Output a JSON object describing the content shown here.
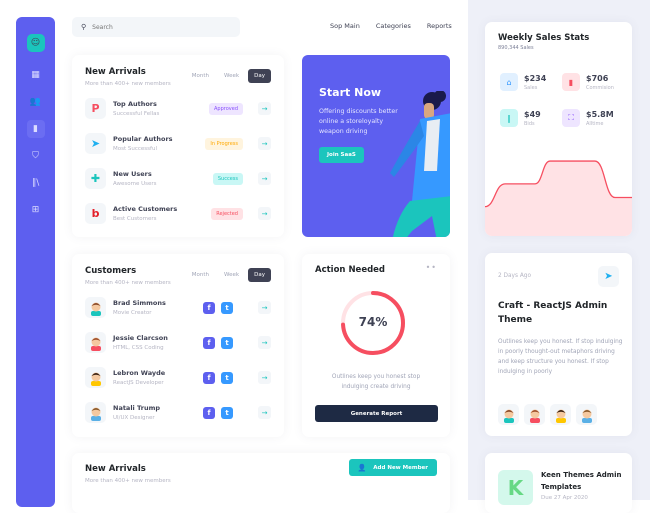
{
  "search": {
    "placeholder": "Search"
  },
  "topnav": [
    "Sop Main",
    "Categories",
    "Reports"
  ],
  "sidebar": {
    "icons": [
      "avatar-icon",
      "grid-icon",
      "users-icon",
      "chart-icon",
      "shield-icon",
      "library-icon",
      "file-plus-icon"
    ],
    "active": 3
  },
  "new_arrivals": {
    "title": "New Arrivals",
    "subtitle": "More than 400+ new members",
    "tabs": [
      "Month",
      "Week",
      "Day"
    ],
    "active_tab": "Day",
    "rows": [
      {
        "title": "Top Authors",
        "sub": "Successful Fellas",
        "status": "Approved",
        "icon": "p-logo",
        "icon_color": "#f64e60",
        "bg": "#eee5ff",
        "fg": "#8950fc"
      },
      {
        "title": "Popular Authors",
        "sub": "Most Successful",
        "status": "In Progress",
        "icon": "telegram-logo",
        "icon_color": "#1fb0f0",
        "bg": "#fff4de",
        "fg": "#ffa800"
      },
      {
        "title": "New Users",
        "sub": "Awesome Users",
        "status": "Success",
        "icon": "puzzle-logo",
        "icon_color": "#1bc5bd",
        "bg": "#c9f7f5",
        "fg": "#1bc5bd"
      },
      {
        "title": "Active Customers",
        "sub": "Best Customers",
        "status": "Rejected",
        "icon": "b-logo",
        "icon_color": "#e4202a",
        "bg": "#ffe2e5",
        "fg": "#f64e60"
      }
    ]
  },
  "promo": {
    "title": "Start Now",
    "text": "Offering discounts better online a storeloyalty weapon driving",
    "button": "Join SaaS"
  },
  "customers": {
    "title": "Customers",
    "subtitle": "More than 400+ new members",
    "tabs": [
      "Month",
      "Week",
      "Day"
    ],
    "active_tab": "Day",
    "rows": [
      {
        "name": "Brad Simmons",
        "role": "Movie Creator",
        "shirt": "#1bc5bd",
        "hair": "#8a4b2a"
      },
      {
        "name": "Jessie Clarcson",
        "role": "HTML, CSS Coding",
        "shirt": "#f64e60",
        "hair": "#a0522d"
      },
      {
        "name": "Lebron Wayde",
        "role": "ReactJS Developer",
        "shirt": "#ffc700",
        "hair": "#3b2314"
      },
      {
        "name": "Natali Trump",
        "role": "UI/UX Designer",
        "shirt": "#5ab0e6",
        "hair": "#8a5a2b"
      }
    ]
  },
  "action": {
    "title": "Action Needed",
    "percent": 74,
    "percent_label": "74%",
    "text": "Outlines keep you honest stop indulging create driving",
    "button": "Generate Report"
  },
  "new_arrivals2": {
    "title": "New Arrivals",
    "subtitle": "More than 400+ new members",
    "button": "Add New Member"
  },
  "weekly": {
    "title": "Weekly Sales Stats",
    "subtitle": "890,344 Sales",
    "stats": [
      {
        "value": "$234",
        "label": "Sales",
        "bg": "#e1f0ff",
        "fg": "#3699ff",
        "icon": "basket-icon"
      },
      {
        "value": "$706",
        "label": "Commision",
        "bg": "#ffe2e5",
        "fg": "#f64e60",
        "icon": "bar-chart-icon"
      },
      {
        "value": "$49",
        "label": "Bids",
        "bg": "#c9f7f5",
        "fg": "#1bc5bd",
        "icon": "library-icon"
      },
      {
        "value": "$5.8M",
        "label": "Alltime",
        "bg": "#eee5ff",
        "fg": "#8950fc",
        "icon": "expand-icon"
      }
    ],
    "chart_values": [
      30,
      55,
      55,
      80,
      80,
      40,
      40
    ]
  },
  "craft": {
    "time": "2 Days Ago",
    "title": "Craft - ReactJS Admin Theme",
    "text": "Outlines keep you honest. If stop indulging in poorly thought-out metaphors driving and keep structure you honest. If stop  indulging in poorly"
  },
  "keen": {
    "title": "Keen Themes Admin Templates",
    "due": "Due 27 Apr 2020"
  }
}
